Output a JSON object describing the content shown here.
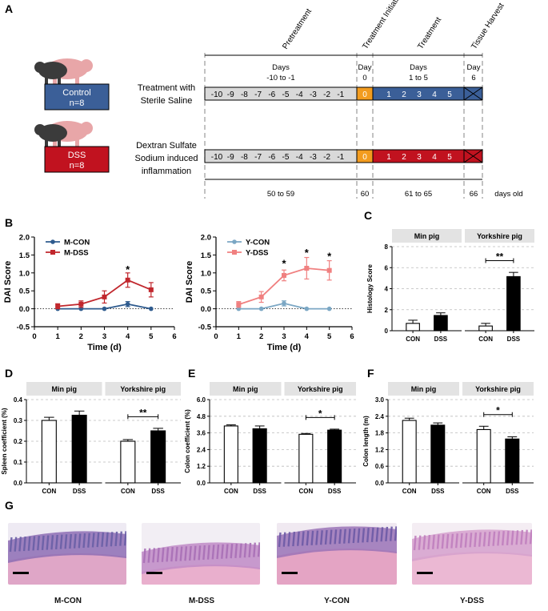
{
  "panel_letters": [
    "A",
    "B",
    "C",
    "D",
    "E",
    "F",
    "G"
  ],
  "timeline": {
    "phases": [
      "Pretreatment",
      "Treatment Initiation",
      "Treatment",
      "Tissue Harvest"
    ],
    "headers": [
      {
        "line1": "Days",
        "line2": "-10 to -1"
      },
      {
        "line1": "Day",
        "line2": "0"
      },
      {
        "line1": "Days",
        "line2": "1 to 5"
      },
      {
        "line1": "Day",
        "line2": "6"
      }
    ],
    "pre_days": [
      "-10",
      "-9",
      "-8",
      "-7",
      "-6",
      "-5",
      "-4",
      "-3",
      "-2",
      "-1"
    ],
    "day0": "0",
    "treat_days": [
      "1",
      "2",
      "3",
      "4",
      "5"
    ],
    "ages": [
      "50 to 59",
      "60",
      "61 to 65",
      "66"
    ],
    "age_unit": "days old",
    "groups": [
      {
        "box_line1": "Control",
        "box_line2": "n=8",
        "box_color": "#3b5f98",
        "treat_color": "#3b5f98",
        "desc": [
          "Treatment with",
          "Sterile Saline"
        ]
      },
      {
        "box_line1": "DSS",
        "box_line2": "n=8",
        "box_color": "#c1121f",
        "treat_color": "#c1121f",
        "desc": [
          "Dextran Sulfate",
          "Sodium induced",
          "inflammation"
        ]
      }
    ],
    "colors": {
      "pre": "#d9d9d9",
      "day0": "#f39c1f"
    }
  },
  "chart_data": [
    {
      "id": "B-left",
      "type": "line",
      "xlabel": "Time (d)",
      "ylabel": "DAI  Score",
      "xlim": [
        0,
        6
      ],
      "ylim": [
        -0.5,
        2.0
      ],
      "xticks": [
        "0",
        "1",
        "2",
        "3",
        "4",
        "5",
        "6"
      ],
      "yticks": [
        "-0.5",
        "0.0",
        "0.5",
        "1.0",
        "1.5",
        "2.0"
      ],
      "x": [
        1,
        2,
        3,
        4,
        5
      ],
      "series": [
        {
          "name": "M-CON",
          "color": "#2f5b8e",
          "values": [
            0,
            0,
            0,
            0.13,
            0
          ],
          "err": [
            0,
            0,
            0,
            0.07,
            0
          ]
        },
        {
          "name": "M-DSS",
          "color": "#c1272d",
          "values": [
            0.07,
            0.13,
            0.33,
            0.8,
            0.53
          ],
          "err": [
            0.07,
            0.09,
            0.17,
            0.2,
            0.2
          ]
        }
      ],
      "annotations": [
        {
          "x": 4,
          "y": 1.08,
          "text": "*"
        }
      ]
    },
    {
      "id": "B-right",
      "type": "line",
      "xlabel": "Time (d)",
      "ylabel": "DAI  Score",
      "xlim": [
        0,
        6
      ],
      "ylim": [
        -0.5,
        2.0
      ],
      "xticks": [
        "0",
        "1",
        "2",
        "3",
        "4",
        "5",
        "6"
      ],
      "yticks": [
        "-0.5",
        "0.0",
        "0.5",
        "1.0",
        "1.5",
        "2.0"
      ],
      "x": [
        1,
        2,
        3,
        4,
        5
      ],
      "series": [
        {
          "name": "Y-CON",
          "color": "#7ba7c4",
          "values": [
            0,
            0,
            0.15,
            0,
            0
          ],
          "err": [
            0,
            0,
            0.07,
            0,
            0
          ]
        },
        {
          "name": "Y-DSS",
          "color": "#f08080",
          "values": [
            0.12,
            0.33,
            0.93,
            1.13,
            1.07
          ],
          "err": [
            0.08,
            0.15,
            0.15,
            0.3,
            0.27
          ]
        }
      ],
      "annotations": [
        {
          "x": 3,
          "y": 1.25,
          "text": "*"
        },
        {
          "x": 4,
          "y": 1.55,
          "text": "*"
        },
        {
          "x": 5,
          "y": 1.45,
          "text": "*"
        }
      ]
    },
    {
      "id": "C",
      "type": "bar",
      "ylabel": "Histology Score",
      "ylim": [
        0,
        8
      ],
      "yticks": [
        "0",
        "2",
        "4",
        "6",
        "8"
      ],
      "facets": [
        "Min pig",
        "Yorkshire pig"
      ],
      "categories": [
        "CON",
        "DSS"
      ],
      "values": [
        [
          0.7,
          1.45
        ],
        [
          0.45,
          5.15
        ]
      ],
      "err": [
        [
          0.3,
          0.25
        ],
        [
          0.25,
          0.4
        ]
      ],
      "sig": [
        null,
        "**"
      ]
    },
    {
      "id": "D",
      "type": "bar",
      "ylabel": "Spleen coefficient  (%)",
      "ylim": [
        0,
        0.4
      ],
      "yticks": [
        "0.0",
        "0.1",
        "0.2",
        "0.3",
        "0.4"
      ],
      "facets": [
        "Min pig",
        "Yorkshire pig"
      ],
      "categories": [
        "CON",
        "DSS"
      ],
      "values": [
        [
          0.3,
          0.325
        ],
        [
          0.2,
          0.25
        ]
      ],
      "err": [
        [
          0.015,
          0.02
        ],
        [
          0.008,
          0.012
        ]
      ],
      "sig": [
        null,
        "**"
      ]
    },
    {
      "id": "E",
      "type": "bar",
      "ylabel": "Colon coefficient  (%)",
      "ylim": [
        0,
        6.0
      ],
      "yticks": [
        "0.0",
        "1.2",
        "2.4",
        "3.6",
        "4.8",
        "6.0"
      ],
      "facets": [
        "Min pig",
        "Yorkshire pig"
      ],
      "categories": [
        "CON",
        "DSS"
      ],
      "values": [
        [
          4.1,
          3.9
        ],
        [
          3.5,
          3.8
        ]
      ],
      "err": [
        [
          0.08,
          0.2
        ],
        [
          0.06,
          0.07
        ]
      ],
      "sig": [
        null,
        "*"
      ]
    },
    {
      "id": "F",
      "type": "bar",
      "ylabel": "Colon length  (m)",
      "ylim": [
        0,
        3.0
      ],
      "yticks": [
        "0.0",
        "0.6",
        "1.2",
        "1.8",
        "2.4",
        "3.0"
      ],
      "facets": [
        "Min pig",
        "Yorkshire pig"
      ],
      "categories": [
        "CON",
        "DSS"
      ],
      "values": [
        [
          2.25,
          2.08
        ],
        [
          1.92,
          1.58
        ]
      ],
      "err": [
        [
          0.08,
          0.08
        ],
        [
          0.12,
          0.08
        ]
      ],
      "sig": [
        null,
        "*"
      ]
    }
  ],
  "histology": {
    "labels": [
      "M-CON",
      "M-DSS",
      "Y-CON",
      "Y-DSS"
    ],
    "palettes": [
      {
        "bg": "#eeeaf3",
        "tissue": "#6a5fa6",
        "mucosa": "#8d6db4",
        "muscle": "#d98fb8"
      },
      {
        "bg": "#f2eef4",
        "tissue": "#a86fb6",
        "mucosa": "#c08ac6",
        "muscle": "#e59ac0"
      },
      {
        "bg": "#f0e9f1",
        "tissue": "#6d5aa6",
        "mucosa": "#9a73b7",
        "muscle": "#e08cb4"
      },
      {
        "bg": "#f4edf3",
        "tissue": "#c07fbe",
        "mucosa": "#d5a0cc",
        "muscle": "#e8a6c8"
      }
    ]
  }
}
